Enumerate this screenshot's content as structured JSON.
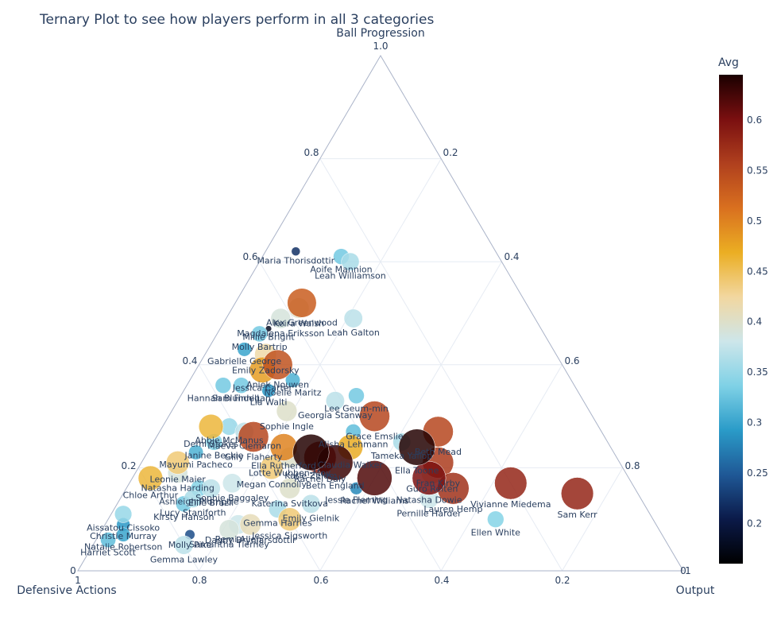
{
  "chart_data": {
    "type": "ternary-scatter",
    "title": "Ternary Plot to see how players perform in all 3 categories",
    "axes": {
      "a": {
        "title": "Ball Progression",
        "ticks": [
          "0.2",
          "0.4",
          "0.6",
          "0.8",
          "1.0"
        ]
      },
      "b": {
        "title": "Defensive Actions",
        "ticks": [
          "0.2",
          "0.4",
          "0.6",
          "0.8",
          "1"
        ]
      },
      "c": {
        "title": "Output",
        "ticks": [
          "0.2",
          "0.4",
          "0.6",
          "0.8",
          "1"
        ]
      },
      "corner_zero": "0"
    },
    "colorbar": {
      "title": "Avg",
      "range": [
        0.16,
        0.645
      ],
      "ticks": [
        "0.2",
        "0.25",
        "0.3",
        "0.35",
        "0.4",
        "0.45",
        "0.5",
        "0.55",
        "0.6"
      ],
      "colorscale": [
        "#000000",
        "#0b1a49",
        "#1f5896",
        "#2a9bc8",
        "#7fd1e6",
        "#cde6ea",
        "#f2d7a0",
        "#ebae23",
        "#d9701f",
        "#b0401e",
        "#7a0f10",
        "#1a0000"
      ]
    },
    "grid": true,
    "points": [
      {
        "name": "Leah Williamson",
        "a": 0.6,
        "b": 0.25,
        "c": 0.15,
        "avg": 0.36
      },
      {
        "name": "Aoife Mannion",
        "a": 0.61,
        "b": 0.26,
        "c": 0.13,
        "avg": 0.33
      },
      {
        "name": "Maria Thorisdottir",
        "a": 0.62,
        "b": 0.33,
        "c": 0.05,
        "avg": 0.22
      },
      {
        "name": "Alex Greenwood",
        "a": 0.52,
        "b": 0.37,
        "c": 0.11,
        "avg": 0.53
      },
      {
        "name": "Keira Walsh",
        "a": 0.51,
        "b": 0.38,
        "c": 0.11,
        "avg": 0.4
      },
      {
        "name": "Magdalena Eriksson",
        "a": 0.49,
        "b": 0.42,
        "c": 0.09,
        "avg": 0.39
      },
      {
        "name": "Leah Galton",
        "a": 0.49,
        "b": 0.3,
        "c": 0.21,
        "avg": 0.37
      },
      {
        "name": "Millie Bright",
        "a": 0.47,
        "b": 0.45,
        "c": 0.08,
        "avg": 0.18
      },
      {
        "name": "Molly Bartrip",
        "a": 0.46,
        "b": 0.47,
        "c": 0.07,
        "avg": 0.33
      },
      {
        "name": "Gabrielle George",
        "a": 0.43,
        "b": 0.51,
        "c": 0.06,
        "avg": 0.3
      },
      {
        "name": "Emily Zadorsky",
        "a": 0.42,
        "b": 0.48,
        "c": 0.1,
        "avg": 0.42
      },
      {
        "name": "Aniek Nouwen",
        "a": 0.4,
        "b": 0.47,
        "c": 0.13,
        "avg": 0.54
      },
      {
        "name": "Jessica Carter",
        "a": 0.39,
        "b": 0.5,
        "c": 0.11,
        "avg": 0.48
      },
      {
        "name": "Noelle Maritz",
        "a": 0.37,
        "b": 0.46,
        "c": 0.17,
        "avg": 0.31
      },
      {
        "name": "Sam Finnigan",
        "a": 0.36,
        "b": 0.55,
        "c": 0.09,
        "avg": 0.33
      },
      {
        "name": "Lia Walti",
        "a": 0.35,
        "b": 0.51,
        "c": 0.14,
        "avg": 0.29
      },
      {
        "name": "Lee Geum-min",
        "a": 0.34,
        "b": 0.37,
        "c": 0.29,
        "avg": 0.33
      },
      {
        "name": "Georgia Stanway",
        "a": 0.33,
        "b": 0.41,
        "c": 0.26,
        "avg": 0.37
      },
      {
        "name": "Sophie Ingle",
        "a": 0.31,
        "b": 0.5,
        "c": 0.19,
        "avg": 0.4
      },
      {
        "name": "Grace Emslie",
        "a": 0.3,
        "b": 0.36,
        "c": 0.34,
        "avg": 0.55
      },
      {
        "name": "Demi Stokes",
        "a": 0.28,
        "b": 0.64,
        "c": 0.08,
        "avg": 0.46
      },
      {
        "name": "Alisha Lehmann",
        "a": 0.27,
        "b": 0.41,
        "c": 0.32,
        "avg": 0.32
      },
      {
        "name": "Beth Mead",
        "a": 0.27,
        "b": 0.27,
        "c": 0.46,
        "avg": 0.55
      },
      {
        "name": "Tameka Yallop",
        "a": 0.25,
        "b": 0.34,
        "c": 0.41,
        "avg": 0.36
      },
      {
        "name": "Ella Toone",
        "a": 0.24,
        "b": 0.32,
        "c": 0.44,
        "avg": 0.64
      },
      {
        "name": "Claudia Walker",
        "a": 0.24,
        "b": 0.43,
        "c": 0.33,
        "avg": 0.47
      },
      {
        "name": "Ella Rutherford",
        "a": 0.24,
        "b": 0.54,
        "c": 0.22,
        "avg": 0.5
      },
      {
        "name": "Katie Zelem",
        "a": 0.23,
        "b": 0.5,
        "c": 0.27,
        "avg": 0.64
      },
      {
        "name": "Fran Kirby",
        "a": 0.21,
        "b": 0.3,
        "c": 0.49,
        "avg": 0.56
      },
      {
        "name": "Natasha Dowie",
        "a": 0.18,
        "b": 0.33,
        "c": 0.49,
        "avg": 0.6
      },
      {
        "name": "Guro Reiten",
        "a": 0.19,
        "b": 0.32,
        "c": 0.49,
        "avg": 0.42
      },
      {
        "name": "Rachel Williams",
        "a": 0.18,
        "b": 0.42,
        "c": 0.4,
        "avg": 0.62
      },
      {
        "name": "Lauren Hemp",
        "a": 0.16,
        "b": 0.3,
        "c": 0.54,
        "avg": 0.57
      },
      {
        "name": "Vivianne Miedema",
        "a": 0.17,
        "b": 0.2,
        "c": 0.63,
        "avg": 0.58
      },
      {
        "name": "Sam Kerr",
        "a": 0.15,
        "b": 0.1,
        "c": 0.75,
        "avg": 0.58
      },
      {
        "name": "Ellen White",
        "a": 0.1,
        "b": 0.26,
        "c": 0.64,
        "avg": 0.34
      },
      {
        "name": "Pernille Harder",
        "a": 0.14,
        "b": 0.35,
        "c": 0.51,
        "avg": 0.38
      },
      {
        "name": "Jessie Fleming",
        "a": 0.16,
        "b": 0.46,
        "c": 0.38,
        "avg": 0.28
      },
      {
        "name": "Megan Connolly",
        "a": 0.2,
        "b": 0.58,
        "c": 0.22,
        "avg": 0.44
      },
      {
        "name": "Katerina Svitkova",
        "a": 0.16,
        "b": 0.57,
        "c": 0.27,
        "avg": 0.4
      },
      {
        "name": "Emily Gielnik",
        "a": 0.13,
        "b": 0.55,
        "c": 0.32,
        "avg": 0.37
      },
      {
        "name": "Gemma Harries",
        "a": 0.12,
        "b": 0.61,
        "c": 0.27,
        "avg": 0.36
      },
      {
        "name": "Jessica Sigsworth",
        "a": 0.1,
        "b": 0.6,
        "c": 0.3,
        "avg": 0.44
      },
      {
        "name": "Ellie Brazil",
        "a": 0.16,
        "b": 0.7,
        "c": 0.14,
        "avg": 0.37
      },
      {
        "name": "Mayumi Pacheco",
        "a": 0.23,
        "b": 0.69,
        "c": 0.08,
        "avg": 0.31
      },
      {
        "name": "Leonie Maier",
        "a": 0.21,
        "b": 0.73,
        "c": 0.06,
        "avg": 0.44
      },
      {
        "name": "Natasha Harding",
        "a": 0.19,
        "b": 0.74,
        "c": 0.07,
        "avg": 0.39
      },
      {
        "name": "Chloe Arthur",
        "a": 0.18,
        "b": 0.79,
        "c": 0.03,
        "avg": 0.46
      },
      {
        "name": "Remi Allen",
        "a": 0.09,
        "b": 0.69,
        "c": 0.22,
        "avg": 0.38
      },
      {
        "name": "Samantha Tierney",
        "a": 0.08,
        "b": 0.71,
        "c": 0.21,
        "avg": 0.39
      },
      {
        "name": "Dagny Brynjarsdottir",
        "a": 0.09,
        "b": 0.67,
        "c": 0.24,
        "avg": 0.41
      },
      {
        "name": "Molly Pike",
        "a": 0.07,
        "b": 0.78,
        "c": 0.15,
        "avg": 0.24
      },
      {
        "name": "Gemma Lawley",
        "a": 0.05,
        "b": 0.8,
        "c": 0.15,
        "avg": 0.37
      },
      {
        "name": "Aissatou Cissoko",
        "a": 0.11,
        "b": 0.87,
        "c": 0.02,
        "avg": 0.35
      },
      {
        "name": "Christie Murray",
        "a": 0.09,
        "b": 0.88,
        "c": 0.03,
        "avg": 0.29
      },
      {
        "name": "Natalie Robertson",
        "a": 0.07,
        "b": 0.89,
        "c": 0.04,
        "avg": 0.3
      },
      {
        "name": "Harriet Scott",
        "a": 0.06,
        "b": 0.92,
        "c": 0.02,
        "avg": 0.32
      },
      {
        "name": "Maeva Clemaron",
        "a": 0.27,
        "b": 0.59,
        "c": 0.14,
        "avg": 0.37
      },
      {
        "name": "Abbie McManus",
        "a": 0.28,
        "b": 0.61,
        "c": 0.11,
        "avg": 0.35
      },
      {
        "name": "Janine Beckie",
        "a": 0.25,
        "b": 0.65,
        "c": 0.1,
        "avg": 0.34
      },
      {
        "name": "Gilly Flaherty",
        "a": 0.26,
        "b": 0.58,
        "c": 0.16,
        "avg": 0.55
      },
      {
        "name": "Hannah Blundell",
        "a": 0.36,
        "b": 0.58,
        "c": 0.06,
        "avg": 0.33
      },
      {
        "name": "Sophie Baggaley",
        "a": 0.17,
        "b": 0.66,
        "c": 0.17,
        "avg": 0.38
      },
      {
        "name": "Kirsty Hanson",
        "a": 0.13,
        "b": 0.76,
        "c": 0.11,
        "avg": 0.33
      },
      {
        "name": "Lucy Staniforth",
        "a": 0.14,
        "b": 0.74,
        "c": 0.12,
        "avg": 0.36
      },
      {
        "name": "Ashleigh Plumptre",
        "a": 0.16,
        "b": 0.72,
        "c": 0.12,
        "avg": 0.34
      },
      {
        "name": "Lotte Wubben-Moy",
        "a": 0.22,
        "b": 0.54,
        "c": 0.24,
        "avg": 0.4
      },
      {
        "name": "Beth England",
        "a": 0.21,
        "b": 0.47,
        "c": 0.32,
        "avg": 0.63
      },
      {
        "name": "Rachel Daly",
        "a": 0.22,
        "b": 0.49,
        "c": 0.29,
        "avg": 0.58
      }
    ]
  }
}
